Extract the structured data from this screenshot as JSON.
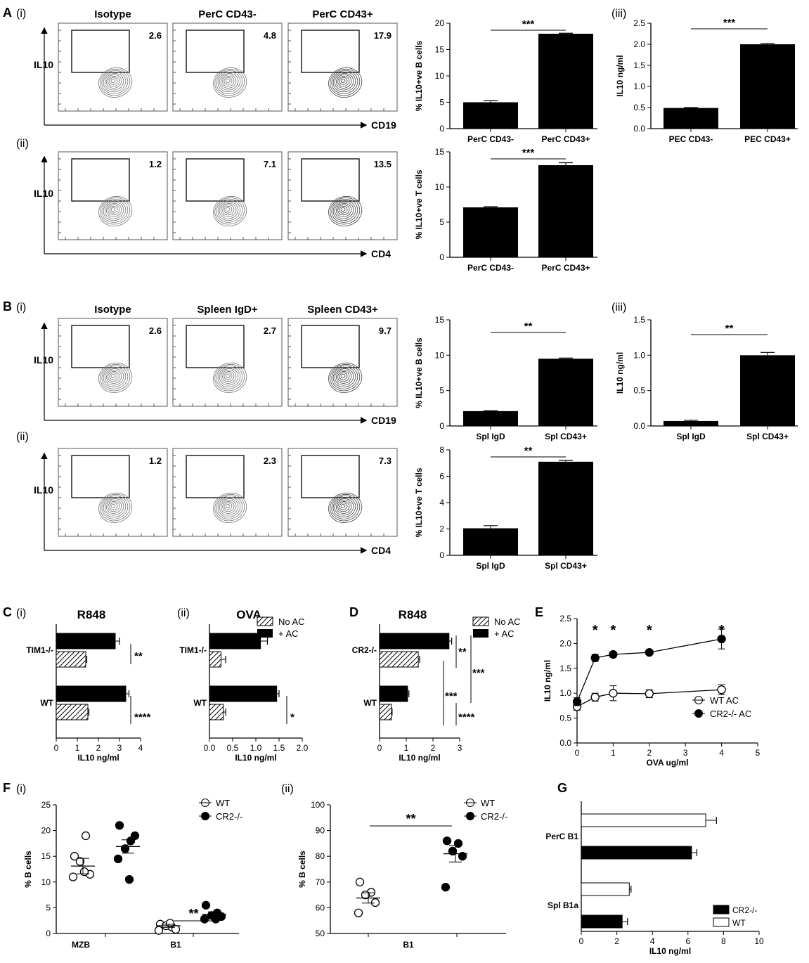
{
  "panel_letters": {
    "A": "A",
    "B": "B",
    "C": "C",
    "D": "D",
    "E": "E",
    "F": "F",
    "G": "G"
  },
  "sub_labels": {
    "i": "(i)",
    "ii": "(ii)",
    "iii": "(iii)"
  },
  "flow": {
    "ylabel": "IL10",
    "a_top": {
      "xlabel": "CD19",
      "titles": [
        "Isotype",
        "PerC CD43-",
        "PerC CD43+"
      ],
      "values": [
        "2.6",
        "4.8",
        "17.9"
      ]
    },
    "a_bot": {
      "xlabel": "CD4",
      "values": [
        "1.2",
        "7.1",
        "13.5"
      ]
    },
    "b_top": {
      "xlabel": "CD19",
      "titles": [
        "Isotype",
        "Spleen IgD+",
        "Spleen CD43+"
      ],
      "values": [
        "2.6",
        "2.7",
        "9.7"
      ]
    },
    "b_bot": {
      "xlabel": "CD4",
      "values": [
        "1.2",
        "2.3",
        "7.3"
      ]
    }
  },
  "legends": {
    "no_ac": "No AC",
    "plus_ac": "+ AC",
    "wt_ac": "WT AC",
    "cr2_ac": "CR2-/- AC",
    "wt": "WT",
    "cr2": "CR2-/-"
  },
  "chart_data": [
    {
      "id": "A_bar_B",
      "type": "bar",
      "categories": [
        "PerC CD43-",
        "PerC CD43+"
      ],
      "values": [
        5.0,
        18.0
      ],
      "errors": [
        0.3,
        0.1
      ],
      "ylabel": "% IL10+ve B cells",
      "ylim": [
        0,
        20
      ],
      "ticks": [
        0,
        5,
        10,
        15,
        20
      ],
      "sig": "***"
    },
    {
      "id": "A_bar_T",
      "type": "bar",
      "categories": [
        "PerC CD43-",
        "PerC CD43+"
      ],
      "values": [
        7.1,
        13.1
      ],
      "errors": [
        0.1,
        0.35
      ],
      "ylabel": "% IL10+ve T cells",
      "ylim": [
        0,
        15
      ],
      "ticks": [
        0,
        5,
        10,
        15
      ],
      "sig": "***"
    },
    {
      "id": "A_bar_IL10",
      "type": "bar",
      "categories": [
        "PEC CD43-",
        "PEC CD43+"
      ],
      "values": [
        0.49,
        2.0
      ],
      "errors": [
        0.01,
        0.02
      ],
      "ylabel": "IL10 ng/ml",
      "ylim": [
        0,
        2.5
      ],
      "ticks": [
        0.0,
        0.5,
        1.0,
        1.5,
        2.0,
        2.5
      ],
      "sig": "***"
    },
    {
      "id": "B_bar_B",
      "type": "bar",
      "categories": [
        "Spl IgD",
        "Spl CD43+"
      ],
      "values": [
        2.1,
        9.5
      ],
      "errors": [
        0.05,
        0.1
      ],
      "ylabel": "% IL10+ve B cells",
      "ylim": [
        0,
        15
      ],
      "ticks": [
        0,
        5,
        10,
        15
      ],
      "sig": "**"
    },
    {
      "id": "B_bar_T",
      "type": "bar",
      "categories": [
        "Spl IgD",
        "Spl CD43+"
      ],
      "values": [
        2.05,
        7.1
      ],
      "errors": [
        0.2,
        0.1
      ],
      "ylabel": "% IL10+ve T cells",
      "ylim": [
        0,
        8
      ],
      "ticks": [
        0,
        2,
        4,
        6,
        8
      ],
      "sig": "**"
    },
    {
      "id": "B_bar_IL10",
      "type": "bar",
      "categories": [
        "Spl IgD",
        "Spl CD43+"
      ],
      "values": [
        0.07,
        1.0
      ],
      "errors": [
        0.01,
        0.04
      ],
      "ylabel": "IL10 ng/ml",
      "ylim": [
        0,
        1.5
      ],
      "ticks": [
        0.0,
        0.5,
        1.0,
        1.5
      ],
      "sig": "**"
    },
    {
      "id": "C_i",
      "type": "bar",
      "orientation": "horizontal",
      "title": "R848",
      "groups": [
        "TIM1-/-",
        "WT"
      ],
      "series": [
        {
          "name": "+ AC",
          "values": [
            2.8,
            3.3
          ],
          "errors": [
            0.2,
            0.15
          ]
        },
        {
          "name": "No AC",
          "values": [
            1.4,
            1.5
          ],
          "errors": [
            0.05,
            0.05
          ]
        }
      ],
      "xlabel": "IL10 ng/ml",
      "xlim": [
        0,
        4
      ],
      "ticks": [
        0,
        1,
        2,
        3,
        4
      ],
      "sig": [
        "**",
        "****"
      ]
    },
    {
      "id": "C_ii",
      "type": "bar",
      "orientation": "horizontal",
      "title": "OVA",
      "groups": [
        "TIM1-/-",
        "WT"
      ],
      "series": [
        {
          "name": "+ AC",
          "values": [
            1.1,
            1.45
          ],
          "errors": [
            0.15,
            0.05
          ]
        },
        {
          "name": "No AC",
          "values": [
            0.25,
            0.3
          ],
          "errors": [
            0.1,
            0.05
          ]
        }
      ],
      "xlabel": "IL10 ng/ml",
      "xlim": [
        0,
        2.0
      ],
      "ticks": [
        0.0,
        0.5,
        1.0,
        1.5,
        2.0
      ],
      "sig": [
        "",
        "*"
      ]
    },
    {
      "id": "D",
      "type": "bar",
      "orientation": "horizontal",
      "title": "R848",
      "groups": [
        "CR2-/-",
        "WT"
      ],
      "series": [
        {
          "name": "+ AC",
          "values": [
            2.6,
            1.05
          ],
          "errors": [
            0.1,
            0.05
          ]
        },
        {
          "name": "No AC",
          "values": [
            1.45,
            0.45
          ],
          "errors": [
            0.05,
            0.02
          ]
        }
      ],
      "xlabel": "IL10 ng/ml",
      "xlim": [
        0,
        3
      ],
      "ticks": [
        0,
        1,
        2,
        3
      ],
      "sig": [
        "**",
        "***",
        "***",
        "****"
      ]
    },
    {
      "id": "E",
      "type": "line",
      "x": [
        0,
        0.5,
        1,
        2,
        4
      ],
      "series": [
        {
          "name": "WT AC",
          "values": [
            0.73,
            0.92,
            1.0,
            0.99,
            1.07
          ],
          "errors": [
            0.07,
            0.08,
            0.15,
            0.08,
            0.1
          ]
        },
        {
          "name": "CR2-/- AC",
          "values": [
            0.83,
            1.71,
            1.78,
            1.82,
            2.09
          ],
          "errors": [
            0.08,
            0.07,
            0.03,
            0.02,
            0.2
          ]
        }
      ],
      "xlabel": "OVA ug/ml",
      "ylabel": "IL10 ng/ml",
      "xlim": [
        0,
        5
      ],
      "ylim": [
        0,
        2.5
      ],
      "xticks": [
        0,
        1,
        2,
        3,
        4,
        5
      ],
      "yticks": [
        0.0,
        0.5,
        1.0,
        1.5,
        2.0,
        2.5
      ],
      "sig_x": [
        0.5,
        1,
        2,
        4
      ],
      "sig": "*"
    },
    {
      "id": "F_i",
      "type": "scatter",
      "categories": [
        "MZB",
        "B1"
      ],
      "series": [
        {
          "name": "WT",
          "points": [
            [
              15,
              19,
              14,
              11.5,
              11,
              12
            ],
            [
              1.8,
              1.3,
              1.5,
              0.8,
              0.6,
              2.0
            ]
          ],
          "means": [
            13.1,
            1.5
          ],
          "sems": [
            1.5,
            0.3
          ]
        },
        {
          "name": "CR2-/-",
          "points": [
            [
              21,
              18,
              16.5,
              19,
              14.5,
              10.5
            ],
            [
              5.5,
              4.0,
              3.5,
              3.3,
              2.8,
              2.8
            ]
          ],
          "means": [
            16.9,
            3.7
          ],
          "sems": [
            1.3,
            0.5
          ]
        }
      ],
      "ylabel": "% B cells",
      "ylim": [
        0,
        25
      ],
      "ticks": [
        0,
        5,
        10,
        15,
        20,
        25
      ],
      "sig": "**"
    },
    {
      "id": "F_ii",
      "type": "scatter",
      "categories": [
        "B1"
      ],
      "series": [
        {
          "name": "WT",
          "points": [
            [
              70,
              66,
              65,
              62,
              58
            ]
          ],
          "means": [
            63.8
          ],
          "sems": [
            2.0
          ]
        },
        {
          "name": "CR2-/-",
          "points": [
            [
              86,
              85,
              82,
              80,
              68
            ]
          ],
          "means": [
            81
          ],
          "sems": [
            3.2
          ]
        }
      ],
      "ylabel": "% B cells",
      "ylim": [
        50,
        100
      ],
      "ticks": [
        50,
        60,
        70,
        80,
        90,
        100
      ],
      "sig": "**"
    },
    {
      "id": "G",
      "type": "bar",
      "orientation": "horizontal",
      "groups": [
        "PerC B1",
        "Spl B1a"
      ],
      "series": [
        {
          "name": "WT",
          "values": [
            7.0,
            2.7
          ],
          "errors": [
            0.6,
            0.1
          ]
        },
        {
          "name": "CR2-/-",
          "values": [
            6.2,
            2.3
          ],
          "errors": [
            0.3,
            0.3
          ]
        }
      ],
      "xlabel": "IL10 ng/ml",
      "xlim": [
        0,
        10
      ],
      "ticks": [
        0,
        2,
        4,
        6,
        8,
        10
      ]
    }
  ]
}
